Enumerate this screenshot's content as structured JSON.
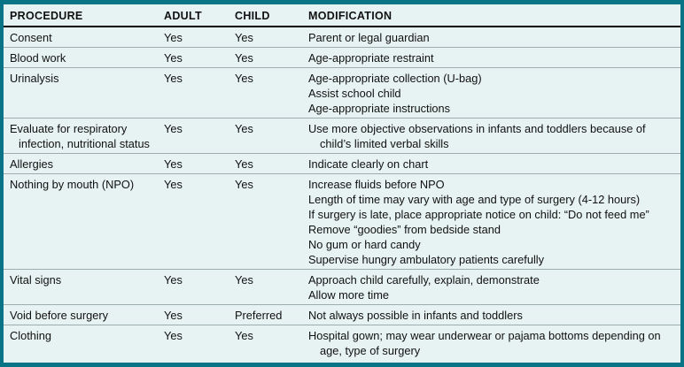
{
  "colors": {
    "table-border": "#0a7487",
    "table-background": "#e7f3f2",
    "header-rule": "#000000",
    "row-divider": "#9badaf",
    "text": "#111111"
  },
  "table": {
    "columns": [
      {
        "key": "procedure",
        "label": "PROCEDURE"
      },
      {
        "key": "adult",
        "label": "ADULT"
      },
      {
        "key": "child",
        "label": "CHILD"
      },
      {
        "key": "modification",
        "label": "MODIFICATION"
      }
    ],
    "rows": [
      {
        "procedure": "Consent",
        "adult": "Yes",
        "child": "Yes",
        "modification": [
          "Parent or legal guardian"
        ]
      },
      {
        "procedure": "Blood work",
        "adult": "Yes",
        "child": "Yes",
        "modification": [
          "Age-appropriate restraint"
        ]
      },
      {
        "procedure": "Urinalysis",
        "adult": "Yes",
        "child": "Yes",
        "modification": [
          "Age-appropriate collection (U-bag)",
          "Assist school child",
          "Age-appropriate instructions"
        ]
      },
      {
        "procedure": "Evaluate for respiratory infection, nutritional status",
        "adult": "Yes",
        "child": "Yes",
        "modification": [
          "Use more objective observations in infants and toddlers because of child’s limited verbal skills"
        ]
      },
      {
        "procedure": "Allergies",
        "adult": "Yes",
        "child": "Yes",
        "modification": [
          "Indicate clearly on chart"
        ]
      },
      {
        "procedure": "Nothing by mouth (NPO)",
        "adult": "Yes",
        "child": "Yes",
        "modification": [
          "Increase fluids before NPO",
          "Length of time may vary with age and type of surgery (4-12 hours)",
          "If surgery is late, place appropriate notice on child: “Do not feed me”",
          "Remove “goodies” from bedside stand",
          "No gum or hard candy",
          "Supervise hungry ambulatory patients carefully"
        ]
      },
      {
        "procedure": "Vital signs",
        "adult": "Yes",
        "child": "Yes",
        "modification": [
          "Approach child carefully, explain, demonstrate",
          "Allow more time"
        ]
      },
      {
        "procedure": "Void before surgery",
        "adult": "Yes",
        "child": "Preferred",
        "modification": [
          "Not always possible in infants and toddlers"
        ]
      },
      {
        "procedure": "Clothing",
        "adult": "Yes",
        "child": "Yes",
        "modification": [
          "Hospital gown; may wear underwear or pajama bottoms depending on age, type of surgery"
        ]
      }
    ]
  }
}
